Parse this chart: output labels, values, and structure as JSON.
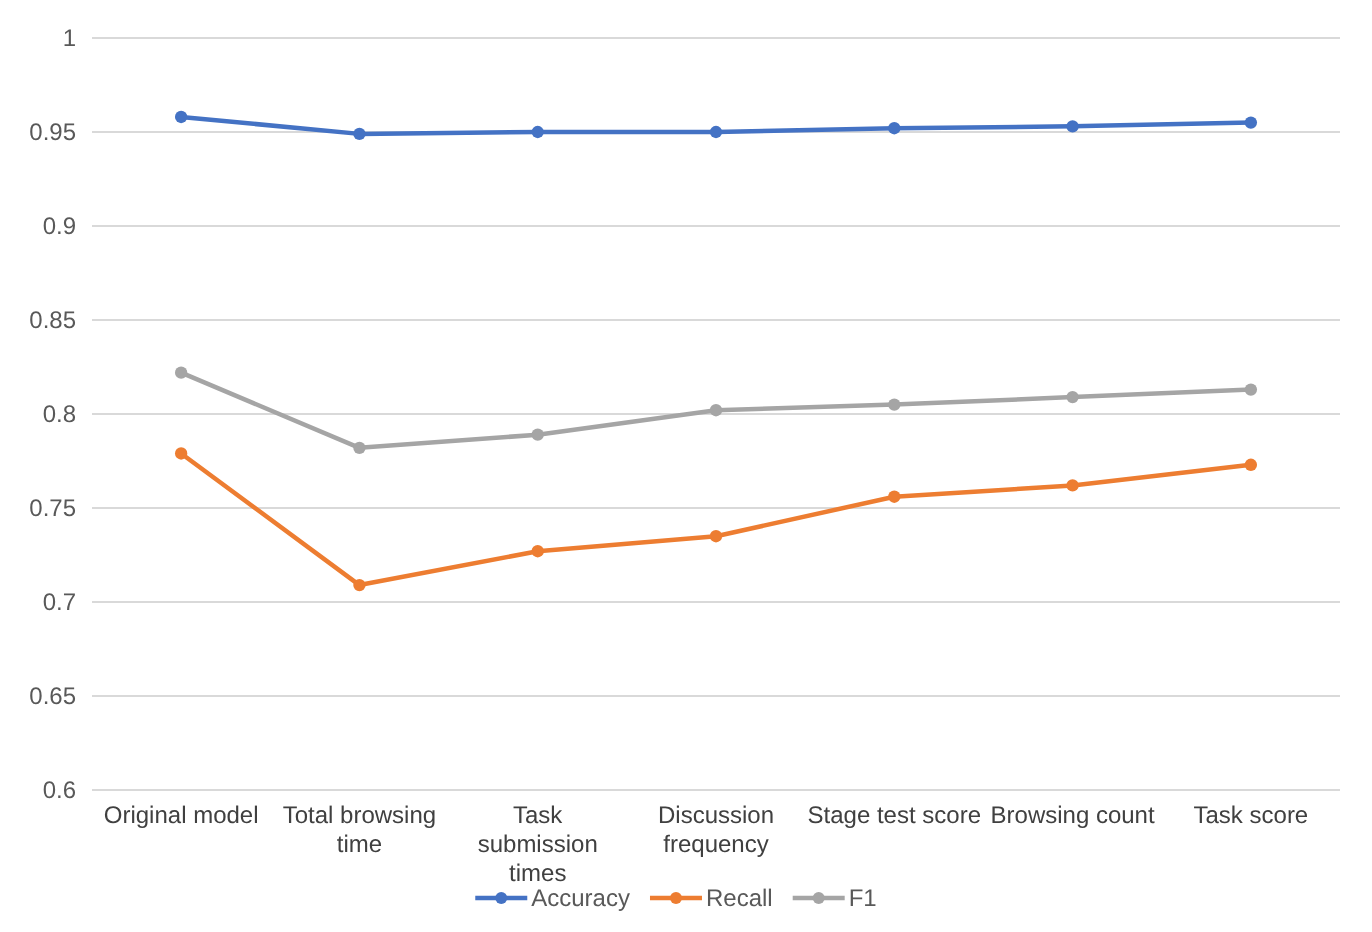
{
  "chart_data": {
    "type": "line",
    "categories": [
      "Original model",
      "Total browsing time",
      "Task submission times",
      "Discussion frequency",
      "Stage test score",
      "Browsing count",
      "Task score"
    ],
    "series": [
      {
        "name": "Accuracy",
        "color": "#4472c4",
        "values": [
          0.958,
          0.949,
          0.95,
          0.95,
          0.952,
          0.953,
          0.955
        ]
      },
      {
        "name": "Recall",
        "color": "#ed7d31",
        "values": [
          0.779,
          0.709,
          0.727,
          0.735,
          0.756,
          0.762,
          0.773
        ]
      },
      {
        "name": "F1",
        "color": "#a5a5a5",
        "values": [
          0.822,
          0.782,
          0.789,
          0.802,
          0.805,
          0.809,
          0.813
        ]
      }
    ],
    "ylim": [
      0.6,
      1
    ],
    "yticks": [
      0.6,
      0.65,
      0.7,
      0.75,
      0.8,
      0.85,
      0.9,
      0.95,
      1
    ],
    "grid": "y",
    "legend": "bottom",
    "marker": "circle",
    "line_style": "solid"
  }
}
